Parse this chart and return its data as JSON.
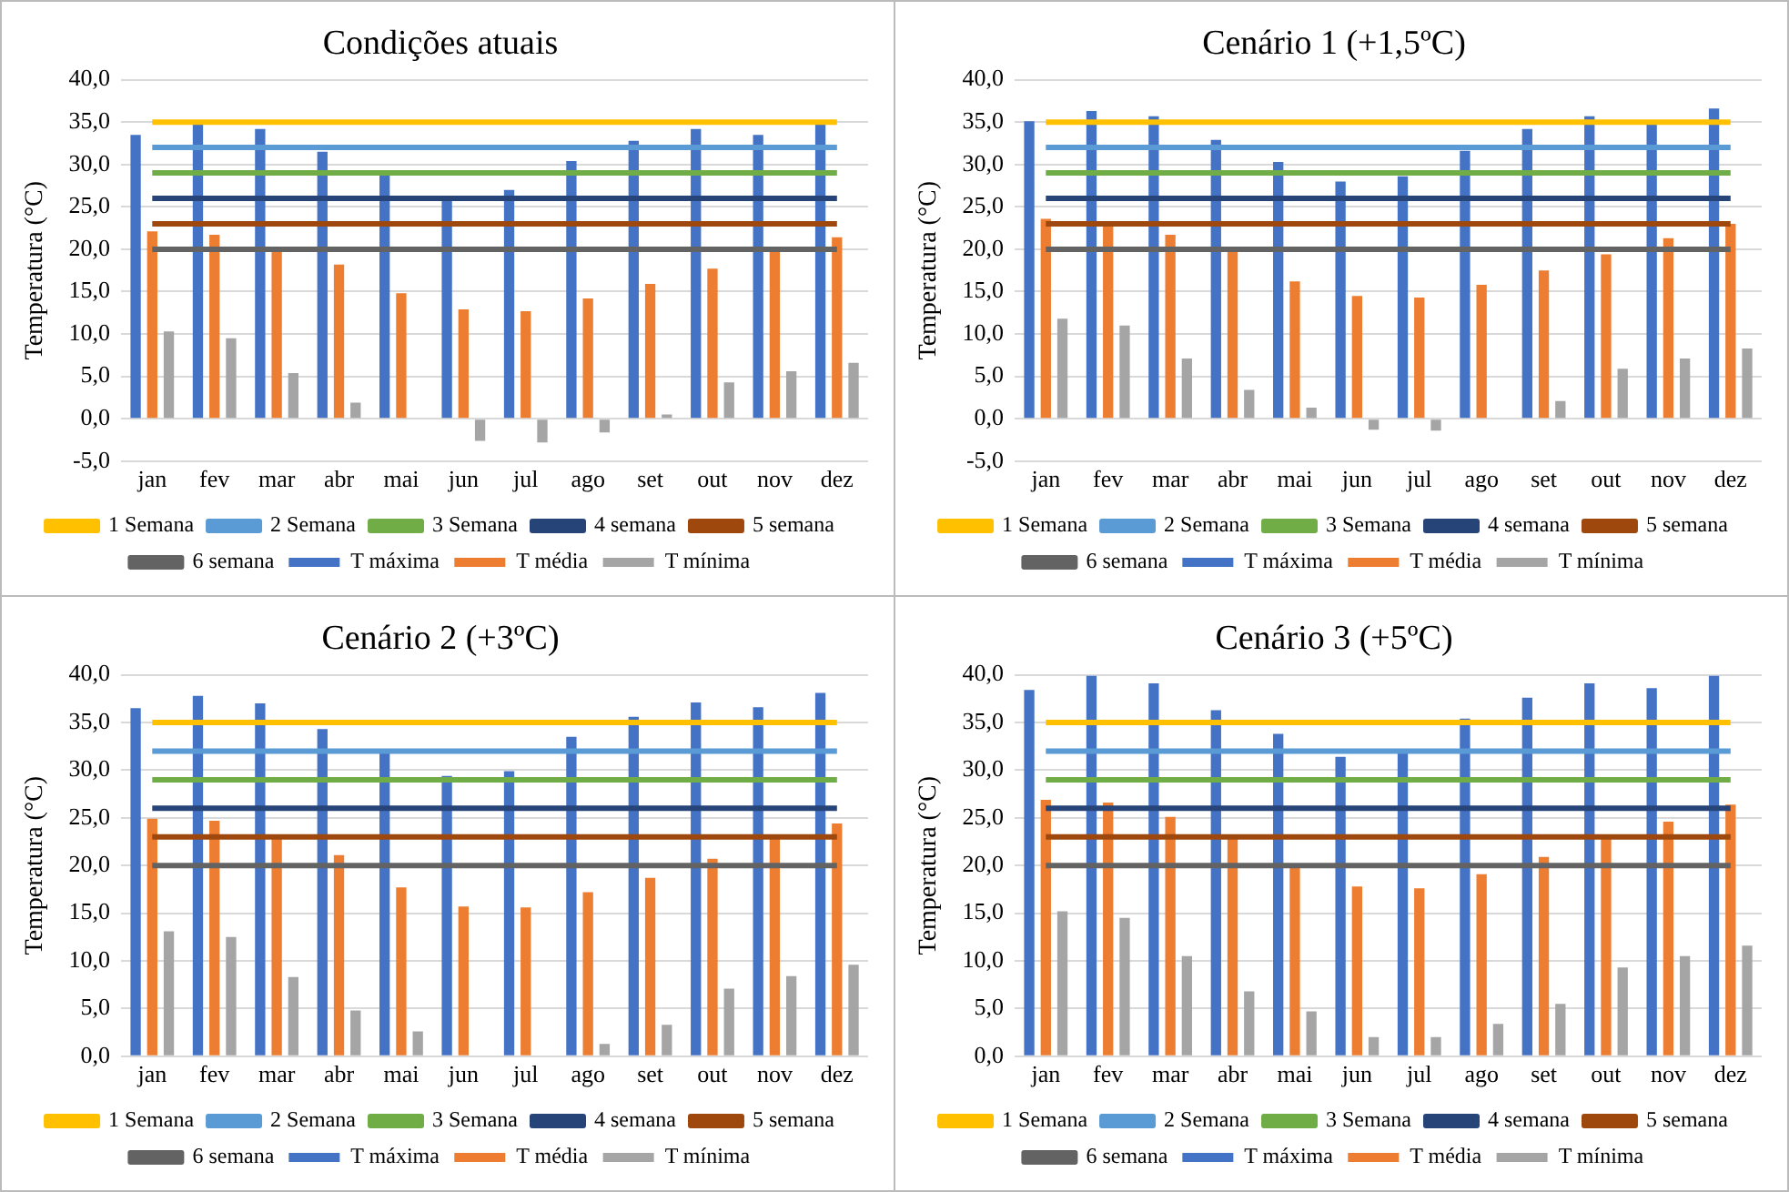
{
  "chart_data": [
    {
      "type": "bar",
      "title": "Condições atuais",
      "ylabel": "Temperatura (°C)",
      "categories": [
        "jan",
        "fev",
        "mar",
        "abr",
        "mai",
        "jun",
        "jul",
        "ago",
        "set",
        "out",
        "nov",
        "dez"
      ],
      "ylim": [
        -5,
        40
      ],
      "yticks": [
        {
          "value": -5,
          "label": "-5,0"
        },
        {
          "value": 0,
          "label": "0,0"
        },
        {
          "value": 5,
          "label": "5,0"
        },
        {
          "value": 10,
          "label": "10,0"
        },
        {
          "value": 15,
          "label": "15,0"
        },
        {
          "value": 20,
          "label": "20,0"
        },
        {
          "value": 25,
          "label": "25,0"
        },
        {
          "value": 30,
          "label": "30,0"
        },
        {
          "value": 35,
          "label": "35,0"
        },
        {
          "value": 40,
          "label": "40,0"
        }
      ],
      "grid": "y",
      "legend": "bottom",
      "marker": "none",
      "series": [
        {
          "name": "T máxima",
          "color": "#4472c4",
          "values": [
            33.5,
            34.7,
            34.2,
            31.5,
            28.7,
            26.1,
            27.0,
            30.4,
            32.8,
            34.2,
            33.5,
            34.7
          ]
        },
        {
          "name": "T média",
          "color": "#ed7d31",
          "values": [
            22.1,
            21.7,
            19.8,
            18.2,
            14.8,
            12.9,
            12.7,
            14.2,
            15.9,
            17.7,
            19.8,
            21.4
          ]
        },
        {
          "name": "T mínima",
          "color": "#a5a5a5",
          "values": [
            10.3,
            9.5,
            5.4,
            1.9,
            0,
            -2.6,
            -2.8,
            -1.6,
            0.5,
            4.3,
            5.6,
            6.6
          ]
        },
        {
          "name": "1 Semana",
          "type": "line",
          "color": "#ffc000",
          "values": [
            35,
            35,
            35,
            35,
            35,
            35,
            35,
            35,
            35,
            35,
            35,
            35
          ]
        },
        {
          "name": "2 Semana",
          "type": "line",
          "color": "#5b9bd5",
          "values": [
            32,
            32,
            32,
            32,
            32,
            32,
            32,
            32,
            32,
            32,
            32,
            32
          ]
        },
        {
          "name": "3 Semana",
          "type": "line",
          "color": "#70ad47",
          "values": [
            29,
            29,
            29,
            29,
            29,
            29,
            29,
            29,
            29,
            29,
            29,
            29
          ]
        },
        {
          "name": "4 semana",
          "type": "line",
          "color": "#264478",
          "values": [
            26,
            26,
            26,
            26,
            26,
            26,
            26,
            26,
            26,
            26,
            26,
            26
          ]
        },
        {
          "name": "5 semana",
          "type": "line",
          "color": "#9e480e",
          "values": [
            23,
            23,
            23,
            23,
            23,
            23,
            23,
            23,
            23,
            23,
            23,
            23
          ]
        },
        {
          "name": "6 semana",
          "type": "line",
          "color": "#636363",
          "values": [
            20,
            20,
            20,
            20,
            20,
            20,
            20,
            20,
            20,
            20,
            20,
            20
          ]
        }
      ]
    },
    {
      "type": "bar",
      "title": "Cenário 1 (+1,5ºC)",
      "ylabel": "Temperatura (°C)",
      "categories": [
        "jan",
        "fev",
        "mar",
        "abr",
        "mai",
        "jun",
        "jul",
        "ago",
        "set",
        "out",
        "nov",
        "dez"
      ],
      "ylim": [
        -5,
        40
      ],
      "yticks": [
        {
          "value": -5,
          "label": "-5,0"
        },
        {
          "value": 0,
          "label": "0,0"
        },
        {
          "value": 5,
          "label": "5,0"
        },
        {
          "value": 10,
          "label": "10,0"
        },
        {
          "value": 15,
          "label": "15,0"
        },
        {
          "value": 20,
          "label": "20,0"
        },
        {
          "value": 25,
          "label": "25,0"
        },
        {
          "value": 30,
          "label": "30,0"
        },
        {
          "value": 35,
          "label": "35,0"
        },
        {
          "value": 40,
          "label": "40,0"
        }
      ],
      "grid": "y",
      "legend": "bottom",
      "marker": "none",
      "series": [
        {
          "name": "T máxima",
          "color": "#4472c4",
          "values": [
            35.1,
            36.3,
            35.7,
            32.9,
            30.3,
            28.0,
            28.6,
            31.6,
            34.2,
            35.7,
            34.8,
            36.6
          ]
        },
        {
          "name": "T média",
          "color": "#ed7d31",
          "values": [
            23.6,
            23.0,
            21.7,
            19.8,
            16.2,
            14.5,
            14.3,
            15.8,
            17.5,
            19.4,
            21.3,
            23.0
          ]
        },
        {
          "name": "T mínima",
          "color": "#a5a5a5",
          "values": [
            11.8,
            11.0,
            7.1,
            3.4,
            1.3,
            -1.3,
            -1.4,
            0,
            2.1,
            5.9,
            7.1,
            8.3
          ]
        },
        {
          "name": "1 Semana",
          "type": "line",
          "color": "#ffc000",
          "values": [
            35,
            35,
            35,
            35,
            35,
            35,
            35,
            35,
            35,
            35,
            35,
            35
          ]
        },
        {
          "name": "2 Semana",
          "type": "line",
          "color": "#5b9bd5",
          "values": [
            32,
            32,
            32,
            32,
            32,
            32,
            32,
            32,
            32,
            32,
            32,
            32
          ]
        },
        {
          "name": "3 Semana",
          "type": "line",
          "color": "#70ad47",
          "values": [
            29,
            29,
            29,
            29,
            29,
            29,
            29,
            29,
            29,
            29,
            29,
            29
          ]
        },
        {
          "name": "4 semana",
          "type": "line",
          "color": "#264478",
          "values": [
            26,
            26,
            26,
            26,
            26,
            26,
            26,
            26,
            26,
            26,
            26,
            26
          ]
        },
        {
          "name": "5 semana",
          "type": "line",
          "color": "#9e480e",
          "values": [
            23,
            23,
            23,
            23,
            23,
            23,
            23,
            23,
            23,
            23,
            23,
            23
          ]
        },
        {
          "name": "6 semana",
          "type": "line",
          "color": "#636363",
          "values": [
            20,
            20,
            20,
            20,
            20,
            20,
            20,
            20,
            20,
            20,
            20,
            20
          ]
        }
      ]
    },
    {
      "type": "bar",
      "title": "Cenário 2 (+3ºC)",
      "ylabel": "Temperatura (°C)",
      "categories": [
        "jan",
        "fev",
        "mar",
        "abr",
        "mai",
        "jun",
        "jul",
        "ago",
        "set",
        "out",
        "nov",
        "dez"
      ],
      "ylim": [
        0,
        40
      ],
      "yticks": [
        {
          "value": 0,
          "label": "0,0"
        },
        {
          "value": 5,
          "label": "5,0"
        },
        {
          "value": 10,
          "label": "10,0"
        },
        {
          "value": 15,
          "label": "15,0"
        },
        {
          "value": 20,
          "label": "20,0"
        },
        {
          "value": 25,
          "label": "25,0"
        },
        {
          "value": 30,
          "label": "30,0"
        },
        {
          "value": 35,
          "label": "35,0"
        },
        {
          "value": 40,
          "label": "40,0"
        }
      ],
      "grid": "y",
      "legend": "bottom",
      "marker": "none",
      "series": [
        {
          "name": "T máxima",
          "color": "#4472c4",
          "values": [
            36.5,
            37.8,
            37.0,
            34.3,
            31.9,
            29.4,
            29.9,
            33.5,
            35.6,
            37.1,
            36.6,
            38.1
          ]
        },
        {
          "name": "T média",
          "color": "#ed7d31",
          "values": [
            24.9,
            24.7,
            22.9,
            21.1,
            17.7,
            15.7,
            15.6,
            17.2,
            18.7,
            20.7,
            22.8,
            24.4
          ]
        },
        {
          "name": "T mínima",
          "color": "#a5a5a5",
          "values": [
            13.1,
            12.5,
            8.3,
            4.8,
            2.6,
            0,
            0,
            1.3,
            3.3,
            7.1,
            8.4,
            9.6
          ]
        },
        {
          "name": "1 Semana",
          "type": "line",
          "color": "#ffc000",
          "values": [
            35,
            35,
            35,
            35,
            35,
            35,
            35,
            35,
            35,
            35,
            35,
            35
          ]
        },
        {
          "name": "2 Semana",
          "type": "line",
          "color": "#5b9bd5",
          "values": [
            32,
            32,
            32,
            32,
            32,
            32,
            32,
            32,
            32,
            32,
            32,
            32
          ]
        },
        {
          "name": "3 Semana",
          "type": "line",
          "color": "#70ad47",
          "values": [
            29,
            29,
            29,
            29,
            29,
            29,
            29,
            29,
            29,
            29,
            29,
            29
          ]
        },
        {
          "name": "4 semana",
          "type": "line",
          "color": "#264478",
          "values": [
            26,
            26,
            26,
            26,
            26,
            26,
            26,
            26,
            26,
            26,
            26,
            26
          ]
        },
        {
          "name": "5 semana",
          "type": "line",
          "color": "#9e480e",
          "values": [
            23,
            23,
            23,
            23,
            23,
            23,
            23,
            23,
            23,
            23,
            23,
            23
          ]
        },
        {
          "name": "6 semana",
          "type": "line",
          "color": "#636363",
          "values": [
            20,
            20,
            20,
            20,
            20,
            20,
            20,
            20,
            20,
            20,
            20,
            20
          ]
        }
      ]
    },
    {
      "type": "bar",
      "title": "Cenário 3 (+5ºC)",
      "ylabel": "Temperatura (°C)",
      "categories": [
        "jan",
        "fev",
        "mar",
        "abr",
        "mai",
        "jun",
        "jul",
        "ago",
        "set",
        "out",
        "nov",
        "dez"
      ],
      "ylim": [
        0,
        40
      ],
      "yticks": [
        {
          "value": 0,
          "label": "0,0"
        },
        {
          "value": 5,
          "label": "5,0"
        },
        {
          "value": 10,
          "label": "10,0"
        },
        {
          "value": 15,
          "label": "15,0"
        },
        {
          "value": 20,
          "label": "20,0"
        },
        {
          "value": 25,
          "label": "25,0"
        },
        {
          "value": 30,
          "label": "30,0"
        },
        {
          "value": 35,
          "label": "35,0"
        },
        {
          "value": 40,
          "label": "40,0"
        }
      ],
      "grid": "y",
      "legend": "bottom",
      "marker": "none",
      "series": [
        {
          "name": "T máxima",
          "color": "#4472c4",
          "values": [
            38.4,
            39.9,
            39.1,
            36.3,
            33.8,
            31.4,
            31.8,
            35.4,
            37.6,
            39.1,
            38.6,
            39.9
          ]
        },
        {
          "name": "T média",
          "color": "#ed7d31",
          "values": [
            26.9,
            26.6,
            25.1,
            23.0,
            19.9,
            17.8,
            17.6,
            19.1,
            20.9,
            23.0,
            24.6,
            26.4
          ]
        },
        {
          "name": "T mínima",
          "color": "#a5a5a5",
          "values": [
            15.2,
            14.5,
            10.5,
            6.8,
            4.7,
            2.0,
            2.0,
            3.4,
            5.5,
            9.3,
            10.5,
            11.6
          ]
        },
        {
          "name": "1 Semana",
          "type": "line",
          "color": "#ffc000",
          "values": [
            35,
            35,
            35,
            35,
            35,
            35,
            35,
            35,
            35,
            35,
            35,
            35
          ]
        },
        {
          "name": "2 Semana",
          "type": "line",
          "color": "#5b9bd5",
          "values": [
            32,
            32,
            32,
            32,
            32,
            32,
            32,
            32,
            32,
            32,
            32,
            32
          ]
        },
        {
          "name": "3 Semana",
          "type": "line",
          "color": "#70ad47",
          "values": [
            29,
            29,
            29,
            29,
            29,
            29,
            29,
            29,
            29,
            29,
            29,
            29
          ]
        },
        {
          "name": "4 semana",
          "type": "line",
          "color": "#264478",
          "values": [
            26,
            26,
            26,
            26,
            26,
            26,
            26,
            26,
            26,
            26,
            26,
            26
          ]
        },
        {
          "name": "5 semana",
          "type": "line",
          "color": "#9e480e",
          "values": [
            23,
            23,
            23,
            23,
            23,
            23,
            23,
            23,
            23,
            23,
            23,
            23
          ]
        },
        {
          "name": "6 semana",
          "type": "line",
          "color": "#636363",
          "values": [
            20,
            20,
            20,
            20,
            20,
            20,
            20,
            20,
            20,
            20,
            20,
            20
          ]
        }
      ]
    }
  ]
}
